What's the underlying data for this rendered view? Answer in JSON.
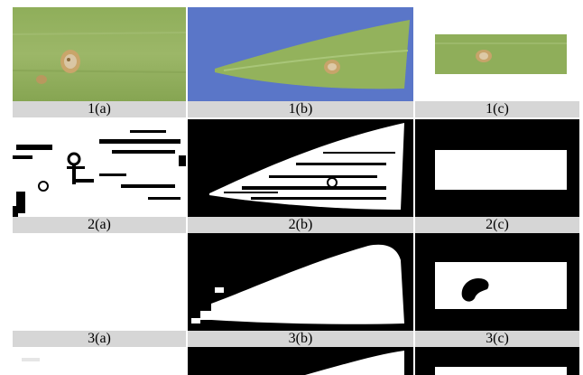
{
  "figure": {
    "columns": [
      "a",
      "b",
      "c"
    ],
    "captions": [
      [
        "1(a)",
        "1(b)",
        "1(c)"
      ],
      [
        "2(a)",
        "2(b)",
        "2(c)"
      ],
      [
        "3(a)",
        "3(b)",
        "3(c)"
      ]
    ]
  }
}
